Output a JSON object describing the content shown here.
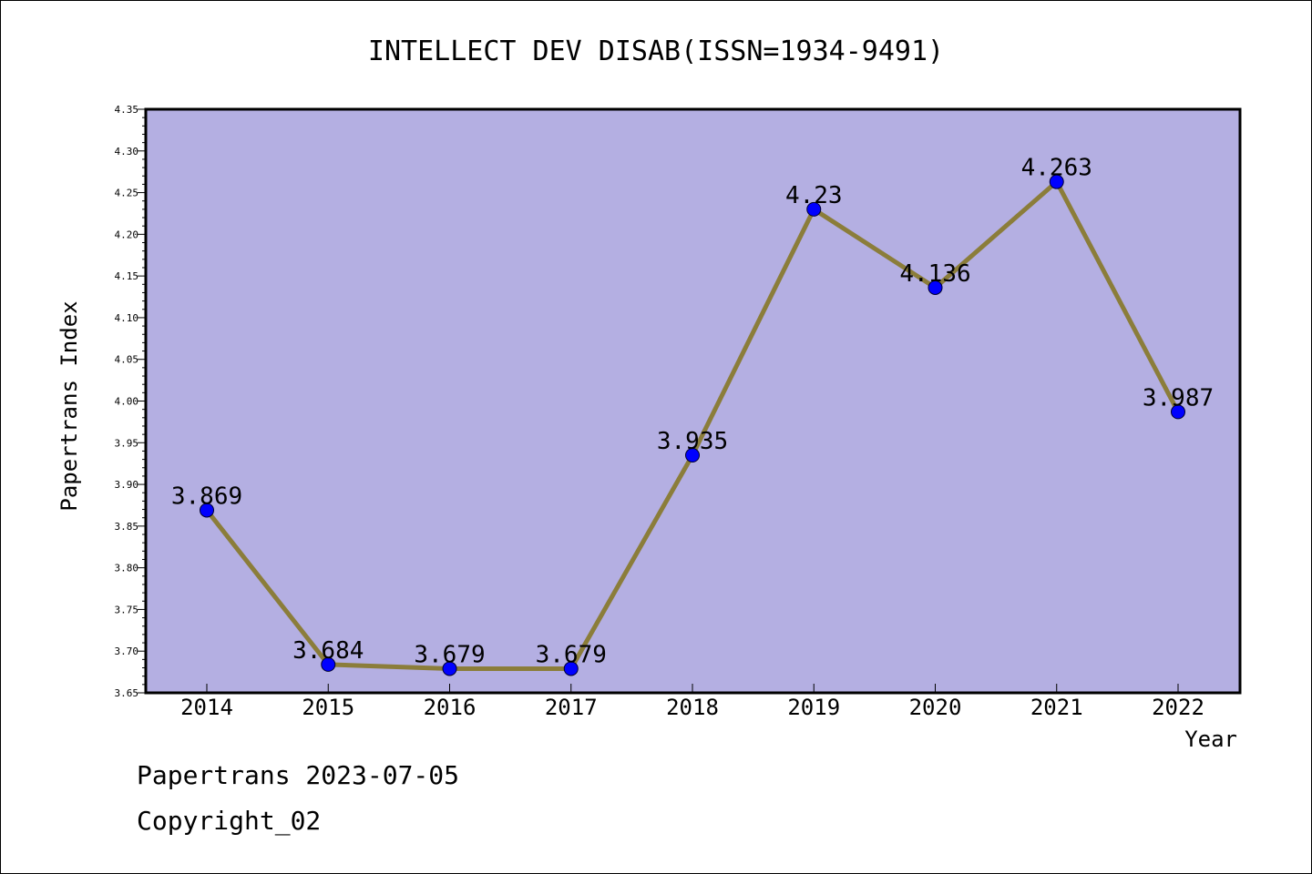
{
  "chart_data": {
    "type": "line",
    "title": "INTELLECT DEV DISAB(ISSN=1934-9491)",
    "xlabel": "Year",
    "ylabel": "Papertrans Index",
    "categories": [
      "2014",
      "2015",
      "2016",
      "2017",
      "2018",
      "2019",
      "2020",
      "2021",
      "2022"
    ],
    "series": [
      {
        "values": [
          3.869,
          3.684,
          3.679,
          3.679,
          3.935,
          4.23,
          4.136,
          4.263,
          3.987
        ],
        "labels": [
          "3.869",
          "3.684",
          "3.679",
          "3.679",
          "3.935",
          "4.23",
          "4.136",
          "4.263",
          "3.987"
        ]
      }
    ],
    "ylim": [
      3.65,
      4.35
    ],
    "yticks": [
      "3.65",
      "3.70",
      "3.75",
      "3.80",
      "3.85",
      "3.90",
      "3.95",
      "4.00",
      "4.05",
      "4.10",
      "4.15",
      "4.20",
      "4.25",
      "4.30",
      "4.35"
    ],
    "grid": false,
    "colors": {
      "plot_background": "#b4afe2",
      "line": "#8b7d3a",
      "marker": "#0000ff"
    }
  },
  "footer": {
    "line1": "Papertrans 2023-07-05",
    "line2": "Copyright_02"
  }
}
